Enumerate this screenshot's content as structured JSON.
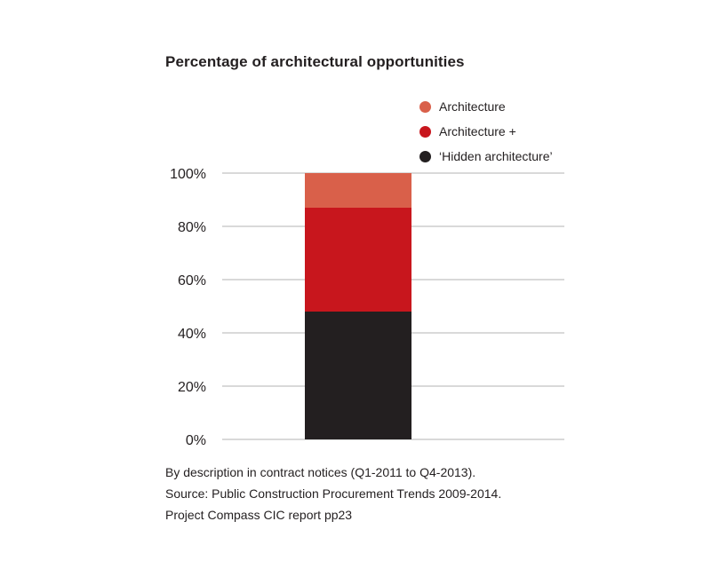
{
  "chart_data": {
    "type": "bar",
    "stacked": true,
    "title": "Percentage of architectural opportunities",
    "categories": [
      ""
    ],
    "series": [
      {
        "name": "'Hidden architecture'",
        "values": [
          48
        ],
        "color": "#231f20"
      },
      {
        "name": "Architecture +",
        "values": [
          39
        ],
        "color": "#c8161d"
      },
      {
        "name": "Architecture",
        "values": [
          13
        ],
        "color": "#d9604a"
      }
    ],
    "legend_order": [
      "Architecture",
      "Architecture +",
      "'Hidden architecture'"
    ],
    "ylim": [
      0,
      100
    ],
    "yticks": [
      0,
      20,
      40,
      60,
      80,
      100
    ],
    "ytick_labels": [
      "0%",
      "20%",
      "40%",
      "60%",
      "80%",
      "100%"
    ],
    "grid": true,
    "legend_position": "top-right",
    "gridline_color": "#b3b3b3"
  },
  "legend": {
    "items": [
      {
        "label": "Architecture",
        "color": "#d9604a"
      },
      {
        "label": "Architecture +",
        "color": "#c8161d"
      },
      {
        "label": "‘Hidden architecture’",
        "color": "#231f20"
      }
    ]
  },
  "footnote": {
    "lines": [
      "By description in contract notices (Q1-2011 to Q4-2013).",
      "Source: Public Construction Procurement Trends 2009-2014.",
      "Project Compass CIC report pp23"
    ]
  }
}
